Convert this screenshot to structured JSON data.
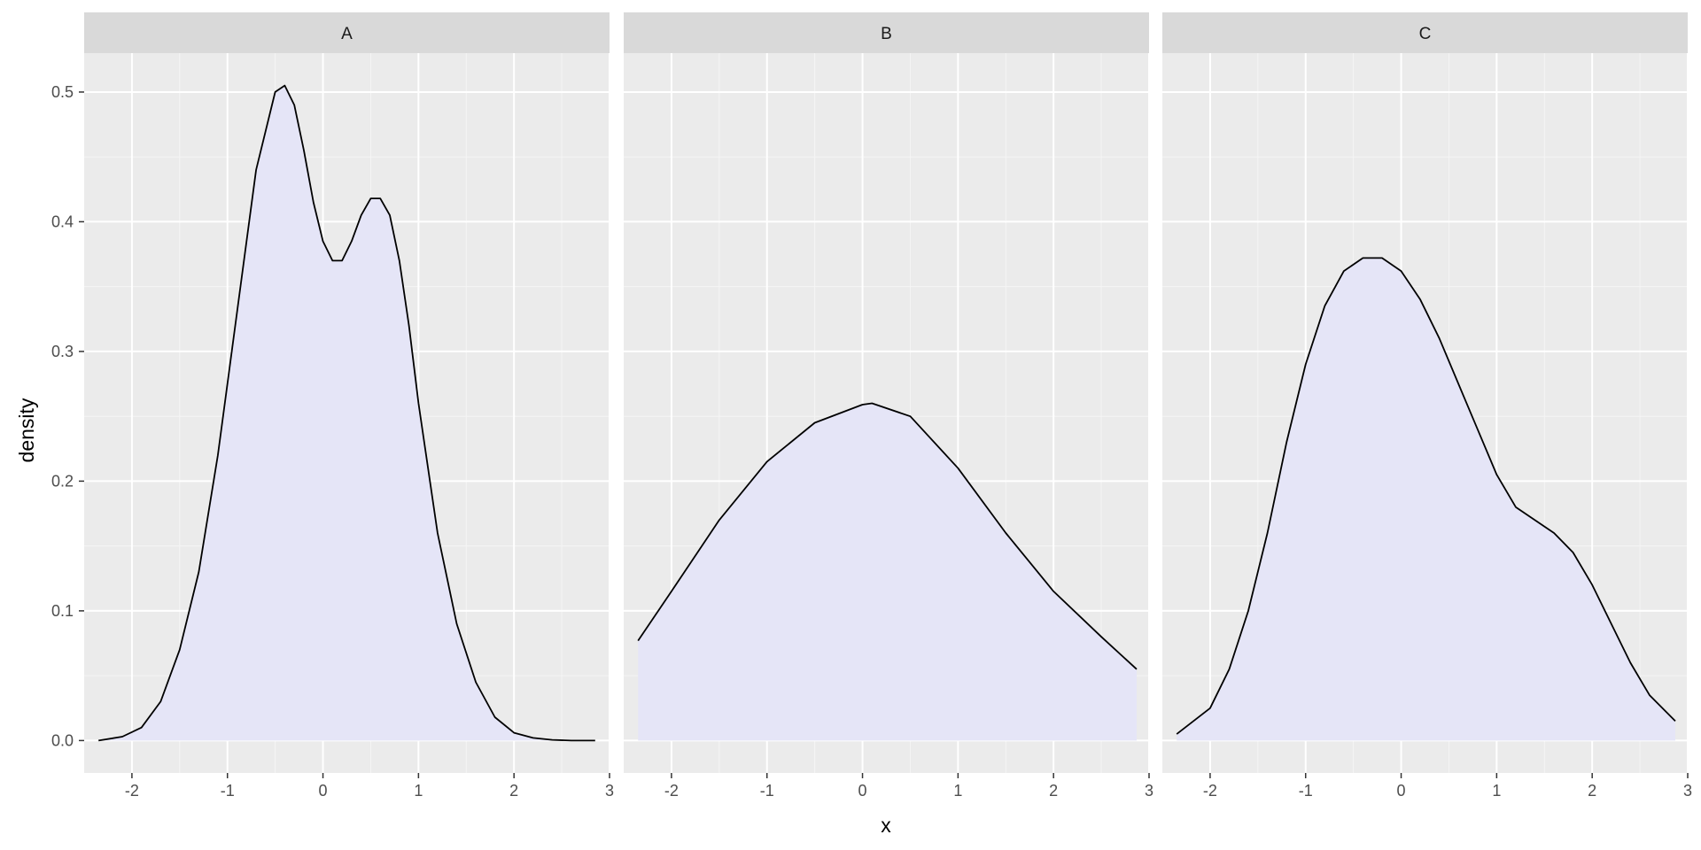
{
  "chart_data": {
    "type": "area",
    "xlabel": "x",
    "ylabel": "density",
    "xlim": [
      -2.5,
      3.0
    ],
    "ylim": [
      -0.025,
      0.53
    ],
    "x_ticks": [
      -2,
      -1,
      0,
      1,
      2,
      3
    ],
    "y_ticks": [
      0.0,
      0.1,
      0.2,
      0.3,
      0.4,
      0.5
    ],
    "y_tick_labels": [
      "0.0",
      "0.1",
      "0.2",
      "0.3",
      "0.4",
      "0.5"
    ],
    "grid": true,
    "fill_color": "#e5e5f7",
    "line_color": "#000000",
    "panel_background": "#ebebeb",
    "strip_background": "#d9d9d9",
    "facets": [
      {
        "label": "A",
        "x": [
          -2.35,
          -2.1,
          -1.9,
          -1.7,
          -1.5,
          -1.3,
          -1.1,
          -0.9,
          -0.7,
          -0.5,
          -0.4,
          -0.3,
          -0.2,
          -0.1,
          0.0,
          0.1,
          0.2,
          0.3,
          0.4,
          0.5,
          0.6,
          0.7,
          0.8,
          0.9,
          1.0,
          1.2,
          1.4,
          1.6,
          1.8,
          2.0,
          2.2,
          2.4,
          2.6,
          2.85
        ],
        "y": [
          0.0,
          0.003,
          0.01,
          0.03,
          0.07,
          0.13,
          0.22,
          0.33,
          0.44,
          0.5,
          0.505,
          0.49,
          0.455,
          0.415,
          0.385,
          0.37,
          0.37,
          0.385,
          0.405,
          0.418,
          0.418,
          0.405,
          0.37,
          0.32,
          0.26,
          0.16,
          0.09,
          0.045,
          0.018,
          0.006,
          0.002,
          0.0005,
          0.0,
          0.0
        ]
      },
      {
        "label": "B",
        "x": [
          -2.35,
          -2.0,
          -1.5,
          -1.0,
          -0.5,
          0.0,
          0.1,
          0.5,
          1.0,
          1.5,
          2.0,
          2.5,
          2.87
        ],
        "y": [
          0.077,
          0.115,
          0.17,
          0.215,
          0.245,
          0.259,
          0.26,
          0.25,
          0.21,
          0.16,
          0.115,
          0.08,
          0.055
        ]
      },
      {
        "label": "C",
        "x": [
          -2.35,
          -2.0,
          -1.8,
          -1.6,
          -1.4,
          -1.2,
          -1.0,
          -0.8,
          -0.6,
          -0.4,
          -0.2,
          0.0,
          0.2,
          0.4,
          0.6,
          0.8,
          1.0,
          1.2,
          1.4,
          1.6,
          1.8,
          2.0,
          2.2,
          2.4,
          2.6,
          2.87
        ],
        "y": [
          0.005,
          0.025,
          0.055,
          0.1,
          0.16,
          0.23,
          0.29,
          0.335,
          0.362,
          0.372,
          0.372,
          0.362,
          0.34,
          0.31,
          0.275,
          0.24,
          0.205,
          0.18,
          0.17,
          0.16,
          0.145,
          0.12,
          0.09,
          0.06,
          0.035,
          0.015
        ]
      }
    ]
  }
}
